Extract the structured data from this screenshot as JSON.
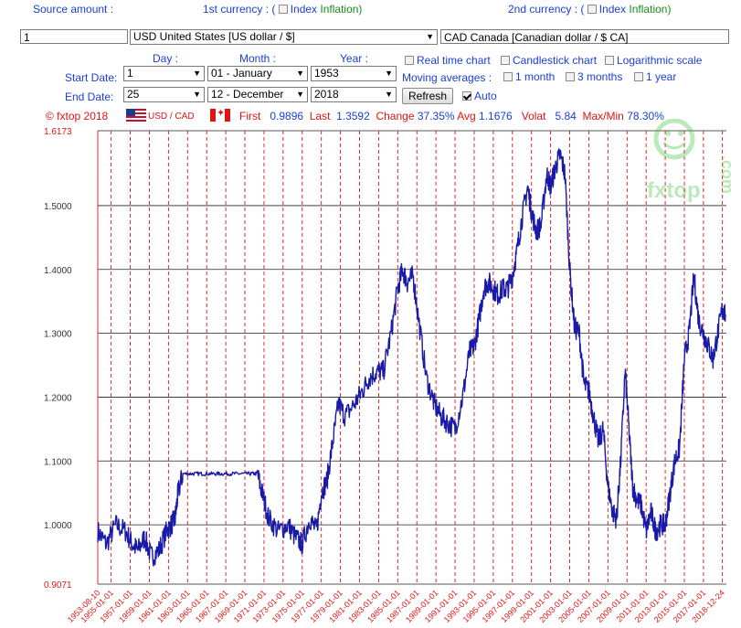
{
  "form": {
    "source_amount_label": "Source amount :",
    "source_amount_value": "1",
    "currency1_label_prefix": "1st currency : (",
    "currency1_label_index": "Index",
    "currency1_label_inflation": "Inflation)",
    "currency1_value": "USD United States [US dollar / $]",
    "currency2_label_prefix": "2nd currency : (",
    "currency2_label_index": "Index",
    "currency2_label_inflation": "Inflation)",
    "currency2_value": "CAD Canada [Canadian dollar / $ CA]",
    "day_label": "Day :",
    "month_label": "Month :",
    "year_label": "Year :",
    "start_date_label": "Start Date:",
    "end_date_label": "End Date:",
    "start_day": "1",
    "start_month": "01 - January",
    "start_year": "1953",
    "end_day": "25",
    "end_month": "12 - December",
    "end_year": "2018",
    "real_time_label": "Real time chart",
    "candlestick_label": "Candlestick chart",
    "log_scale_label": "Logarithmic scale",
    "moving_averages_label": "Moving averages :",
    "ma_1_month": "1 month",
    "ma_3_months": "3 months",
    "ma_1_year": "1 year",
    "refresh_label": "Refresh",
    "auto_label": "Auto"
  },
  "stats": {
    "copyright": "© fxtop 2018",
    "pair": "USD / CAD",
    "first_label": "First",
    "first_value": "0.9896",
    "last_label": "Last",
    "last_value": "1.3592",
    "change_label": "Change",
    "change_value": "37.35%",
    "avg_label": "Avg",
    "avg_value": "1.1676",
    "volat_label": "Volat",
    "volat_value": "5.84",
    "maxmin_label": "Max/Min",
    "maxmin_value": "78.30%"
  },
  "watermark": {
    "text": "fxtop",
    "dotcom": ".com"
  },
  "colors": {
    "line": "#1a1aa8",
    "grid_v": "#e01414",
    "grid_h": "#222222",
    "axis_label": "#e01414"
  },
  "chart_data": {
    "type": "line",
    "title": "",
    "xlabel": "",
    "ylabel": "",
    "ylim": [
      0.9071,
      1.6173
    ],
    "y_ticks": [
      "1.6173",
      "1.5000",
      "1.4000",
      "1.3000",
      "1.2000",
      "1.1000",
      "1.0000",
      "0.9071"
    ],
    "y_tick_values": [
      1.6173,
      1.5,
      1.4,
      1.3,
      1.2,
      1.1,
      1.0,
      0.9071
    ],
    "x_ticks": [
      "1953-08-10",
      "1955-01-01",
      "1957-01-01",
      "1959-01-01",
      "1961-01-01",
      "1963-01-01",
      "1965-01-01",
      "1967-01-01",
      "1969-01-01",
      "1971-01-01",
      "1973-01-01",
      "1975-01-01",
      "1977-01-01",
      "1979-01-01",
      "1981-01-01",
      "1983-01-01",
      "1985-01-01",
      "1987-01-01",
      "1989-01-01",
      "1991-01-01",
      "1993-01-01",
      "1995-01-01",
      "1997-01-01",
      "1999-01-01",
      "2001-01-01",
      "2003-01-01",
      "2005-01-01",
      "2007-01-01",
      "2009-01-01",
      "2011-01-01",
      "2013-01-01",
      "2015-01-01",
      "2017-01-01",
      "2018-12-24"
    ],
    "x_tick_years": [
      1953.6,
      1955,
      1957,
      1959,
      1961,
      1963,
      1965,
      1967,
      1969,
      1971,
      1973,
      1975,
      1977,
      1979,
      1981,
      1983,
      1985,
      1987,
      1989,
      1991,
      1993,
      1995,
      1997,
      1999,
      2001,
      2003,
      2005,
      2007,
      2009,
      2011,
      2013,
      2015,
      2017,
      2018.98
    ],
    "xlim_years": [
      1953.6,
      2019.4
    ],
    "series": [
      {
        "x": [
          1953.6,
          1954.5,
          1955.5,
          1956.5,
          1957.2,
          1957.8,
          1958.5,
          1959.2,
          1960.0,
          1960.8,
          1961.3,
          1961.7,
          1962.0,
          1962.5,
          1963.5,
          1964.5,
          1965.5,
          1966.5,
          1967.5,
          1968.5,
          1969.5,
          1970.3,
          1970.8,
          1971.5,
          1972.5,
          1973.5,
          1974.3,
          1975.0,
          1975.8,
          1976.5,
          1977.0,
          1977.6,
          1978.2,
          1978.8,
          1979.5,
          1980.5,
          1981.3,
          1982.0,
          1982.8,
          1983.5,
          1984.3,
          1985.0,
          1985.5,
          1986.0,
          1986.6,
          1987.2,
          1988.0,
          1988.8,
          1989.5,
          1990.2,
          1991.0,
          1991.8,
          1992.5,
          1993.0,
          1993.5,
          1994.0,
          1994.5,
          1995.0,
          1995.5,
          1996.0,
          1996.5,
          1997.0,
          1997.5,
          1998.0,
          1998.6,
          1999.0,
          1999.5,
          2000.0,
          2000.6,
          2001.0,
          2001.5,
          2002.0,
          2002.5,
          2003.0,
          2003.5,
          2004.0,
          2004.5,
          2005.0,
          2005.5,
          2006.0,
          2006.5,
          2007.0,
          2007.5,
          2007.9,
          2008.3,
          2008.8,
          2009.2,
          2009.6,
          2010.0,
          2010.5,
          2011.0,
          2011.5,
          2012.0,
          2012.5,
          2013.0,
          2013.5,
          2014.0,
          2014.5,
          2015.0,
          2015.5,
          2016.0,
          2016.5,
          2017.0,
          2017.5,
          2018.0,
          2018.5,
          2019.0,
          2019.3
        ],
        "y": [
          0.99,
          0.97,
          1.0,
          0.99,
          0.97,
          0.96,
          0.98,
          0.95,
          0.96,
          0.99,
          1.0,
          1.01,
          1.05,
          1.08,
          1.08,
          1.08,
          1.08,
          1.08,
          1.08,
          1.08,
          1.08,
          1.08,
          1.05,
          1.01,
          0.99,
          1.0,
          0.98,
          0.97,
          1.01,
          0.99,
          1.05,
          1.07,
          1.13,
          1.19,
          1.17,
          1.19,
          1.21,
          1.23,
          1.24,
          1.24,
          1.3,
          1.37,
          1.4,
          1.38,
          1.39,
          1.32,
          1.23,
          1.19,
          1.17,
          1.16,
          1.15,
          1.2,
          1.27,
          1.28,
          1.32,
          1.37,
          1.38,
          1.37,
          1.36,
          1.37,
          1.37,
          1.39,
          1.43,
          1.48,
          1.53,
          1.49,
          1.46,
          1.47,
          1.55,
          1.53,
          1.56,
          1.58,
          1.55,
          1.4,
          1.31,
          1.3,
          1.22,
          1.21,
          1.17,
          1.13,
          1.15,
          1.06,
          1.02,
          1.01,
          1.09,
          1.24,
          1.15,
          1.06,
          1.04,
          1.03,
          0.99,
          1.02,
          0.99,
          1.0,
          1.0,
          1.05,
          1.1,
          1.12,
          1.26,
          1.3,
          1.39,
          1.32,
          1.3,
          1.28,
          1.26,
          1.3,
          1.34,
          1.33
        ]
      }
    ],
    "grid": true
  }
}
